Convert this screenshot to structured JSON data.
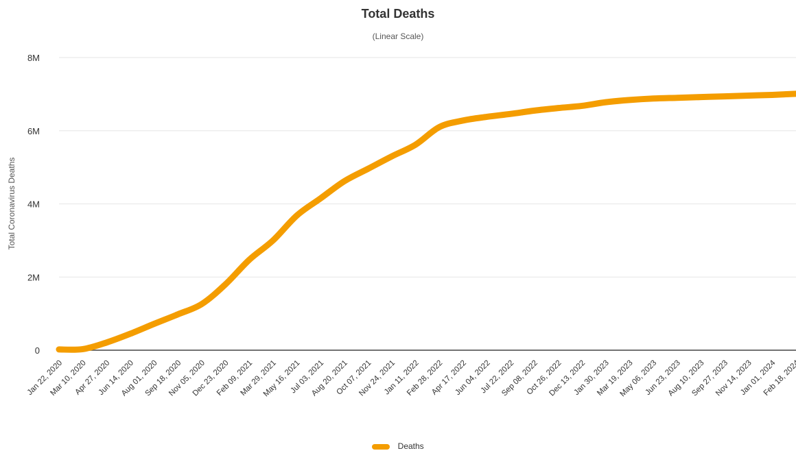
{
  "chart_data": {
    "type": "line",
    "title": "Total Deaths",
    "subtitle": "(Linear Scale)",
    "ylabel": "Total Coronavirus Deaths",
    "xlabel": "",
    "ylim": [
      0,
      8000000
    ],
    "y_ticks": [
      {
        "value": 0,
        "label": "0"
      },
      {
        "value": 2000000,
        "label": "2M"
      },
      {
        "value": 4000000,
        "label": "4M"
      },
      {
        "value": 6000000,
        "label": "6M"
      },
      {
        "value": 8000000,
        "label": "8M"
      }
    ],
    "grid": true,
    "legend": "bottom",
    "series_color": "#f49d00",
    "categories": [
      "Jan 22, 2020",
      "Mar 10, 2020",
      "Apr 27, 2020",
      "Jun 14, 2020",
      "Aug 01, 2020",
      "Sep 18, 2020",
      "Nov 05, 2020",
      "Dec 23, 2020",
      "Feb 09, 2021",
      "Mar 29, 2021",
      "May 16, 2021",
      "Jul 03, 2021",
      "Aug 20, 2021",
      "Oct 07, 2021",
      "Nov 24, 2021",
      "Jan 11, 2022",
      "Feb 28, 2022",
      "Apr 17, 2022",
      "Jun 04, 2022",
      "Jul 22, 2022",
      "Sep 08, 2022",
      "Oct 26, 2022",
      "Dec 13, 2022",
      "Jan 30, 2023",
      "Mar 19, 2023",
      "May 06, 2023",
      "Jun 23, 2023",
      "Aug 10, 2023",
      "Sep 27, 2023",
      "Nov 14, 2023",
      "Jan 01, 2024",
      "Feb 18, 2024"
    ],
    "series": [
      {
        "name": "Deaths",
        "values": [
          20000,
          30000,
          210000,
          450000,
          720000,
          980000,
          1260000,
          1800000,
          2470000,
          3000000,
          3680000,
          4150000,
          4620000,
          4960000,
          5300000,
          5620000,
          6100000,
          6280000,
          6380000,
          6460000,
          6550000,
          6620000,
          6680000,
          6780000,
          6840000,
          6880000,
          6900000,
          6920000,
          6940000,
          6960000,
          6980000,
          7010000
        ]
      }
    ]
  }
}
